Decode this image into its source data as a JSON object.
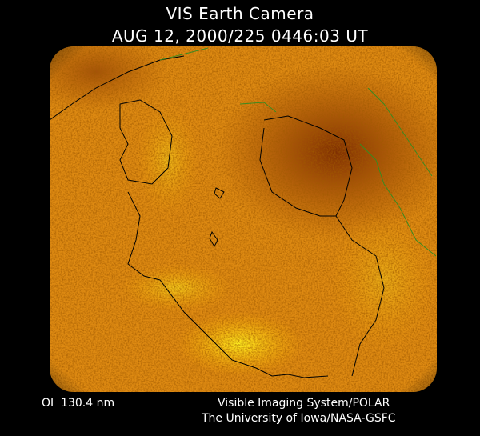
{
  "header": {
    "title": "VIS Earth Camera",
    "timestamp": "AUG 12, 2000/225 0446:03 UT"
  },
  "footer": {
    "filter": "OI  130.4 nm",
    "instrument": "Visible Imaging System/POLAR",
    "institution": "The University of Iowa/NASA-GSFC"
  }
}
